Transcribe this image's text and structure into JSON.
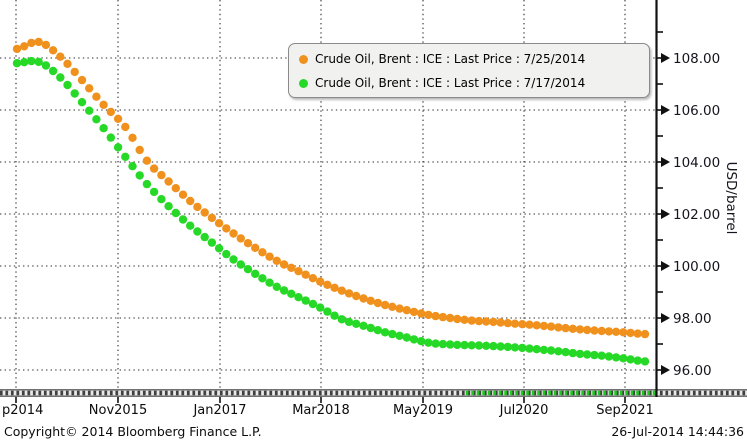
{
  "chart_data": {
    "type": "scatter",
    "ylabel": "USD/barrel",
    "grid": true,
    "legend_position": "top-right",
    "ylim": [
      95.2,
      110.2
    ],
    "x_tick_labels": [
      "p2014",
      "Nov2015",
      "Jan2017",
      "Mar2018",
      "May2019",
      "Jul2020",
      "Sep2021"
    ],
    "y_tick_values": [
      108,
      106,
      104,
      102,
      100,
      98,
      96
    ],
    "y_tick_labels": [
      "108.00",
      "106.00",
      "104.00",
      "102.00",
      "100.00",
      "98.00",
      "96.00"
    ],
    "months_total": 88,
    "anchor_month_step": 3,
    "series": [
      {
        "name": "Crude Oil, Brent : ICE : Last Price : 7/25/2014",
        "color": "#F0911E",
        "anchor_values": [
          108.35,
          108.62,
          108.05,
          107.15,
          106.2,
          105.35,
          104.05,
          103.25,
          102.5,
          101.85,
          101.25,
          100.7,
          100.2,
          99.8,
          99.4,
          99.05,
          98.75,
          98.5,
          98.3,
          98.12,
          98.0,
          97.9,
          97.85,
          97.78,
          97.72,
          97.64,
          97.56,
          97.5,
          97.45,
          97.38
        ]
      },
      {
        "name": "Crude Oil, Brent : ICE : Last Price : 7/17/2014",
        "color": "#26D926",
        "anchor_values": [
          107.8,
          107.85,
          107.25,
          106.3,
          105.3,
          104.2,
          103.15,
          102.3,
          101.55,
          100.9,
          100.25,
          99.7,
          99.2,
          98.8,
          98.4,
          97.95,
          97.7,
          97.45,
          97.25,
          97.05,
          96.98,
          96.95,
          96.92,
          96.87,
          96.8,
          96.72,
          96.62,
          96.55,
          96.45,
          96.33
        ]
      }
    ],
    "colors": {
      "grid": "#2e2e2e",
      "axis_line": "#111111",
      "axis_text": "#15151f",
      "scrollbar_track": "#9a9a9a",
      "scrollbar_dash_dark": "#404040",
      "scrollbar_dash_light": "#e9e9e9",
      "scrollbar_dash_green": "#1fca1f",
      "legend_background": "#f1f1ef"
    }
  },
  "footer": {
    "copyright": "Copyright© 2014 Bloomberg Finance L.P.",
    "timestamp": "26-Jul-2014 14:44:36"
  }
}
